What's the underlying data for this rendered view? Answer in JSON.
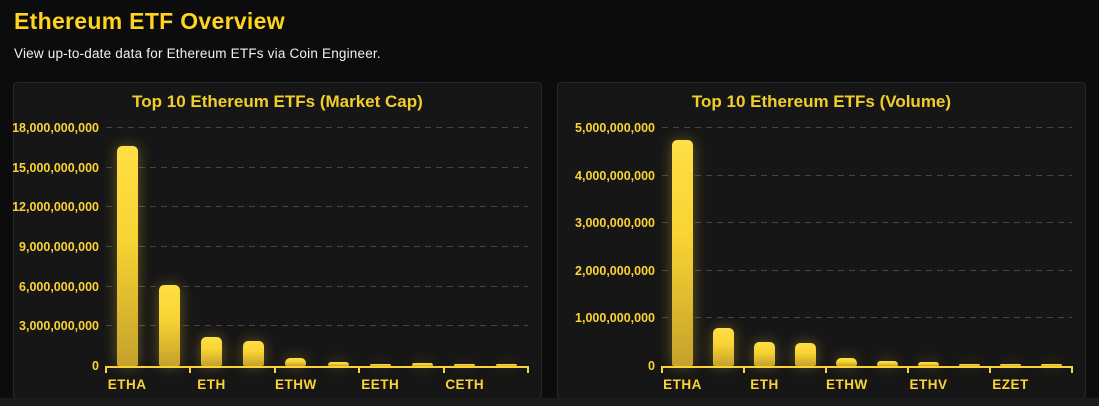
{
  "page": {
    "title": "Ethereum ETF Overview",
    "subtitle": "View up-to-date data for Ethereum ETFs via Coin Engineer."
  },
  "colors": {
    "accent_yellow": "#fbd335",
    "header_title_yellow": "#ffd41f",
    "chart_title_yellow": "#f2ce2d",
    "bar_gradient_top": "#ffdf45",
    "bar_gradient_bottom": "#c5a12b",
    "page_background": "#0c0c0c",
    "panel_background": "#161616",
    "gridline_gray": "#4d4d4d",
    "subtitle_white": "#f1f1f1"
  },
  "chart_data": [
    {
      "type": "bar",
      "title": "Top 10 Ethereum ETFs (Market Cap)",
      "xlabel": "",
      "ylabel": "",
      "ylim": [
        0,
        18000000000
      ],
      "ytick_step": 3000000000,
      "ytick_labels": [
        "0",
        "3,000,000,000",
        "6,000,000,000",
        "9,000,000,000",
        "12,000,000,000",
        "15,000,000,000",
        "18,000,000,000"
      ],
      "grid": "dashed-horizontal",
      "legend": "none",
      "bar_count": 10,
      "visible_x_labels": [
        "ETHA",
        "ETH",
        "ETHW",
        "EETH",
        "CETH"
      ],
      "visible_x_label_slots": [
        0,
        2,
        4,
        6,
        8
      ],
      "values": [
        16650000000,
        6100000000,
        2200000000,
        1900000000,
        600000000,
        300000000,
        160000000,
        200000000,
        130000000,
        150000000
      ]
    },
    {
      "type": "bar",
      "title": "Top 10 Ethereum ETFs (Volume)",
      "xlabel": "",
      "ylabel": "",
      "ylim": [
        0,
        5000000000
      ],
      "ytick_step": 1000000000,
      "ytick_labels": [
        "0",
        "1,000,000,000",
        "2,000,000,000",
        "3,000,000,000",
        "4,000,000,000",
        "5,000,000,000"
      ],
      "grid": "dashed-horizontal",
      "legend": "none",
      "bar_count": 10,
      "visible_x_labels": [
        "ETHA",
        "ETH",
        "ETHW",
        "ETHV",
        "EZET"
      ],
      "visible_x_label_slots": [
        0,
        2,
        4,
        6,
        8
      ],
      "values": [
        4750000000,
        800000000,
        500000000,
        480000000,
        160000000,
        100000000,
        80000000,
        40000000,
        30000000,
        30000000
      ]
    }
  ]
}
